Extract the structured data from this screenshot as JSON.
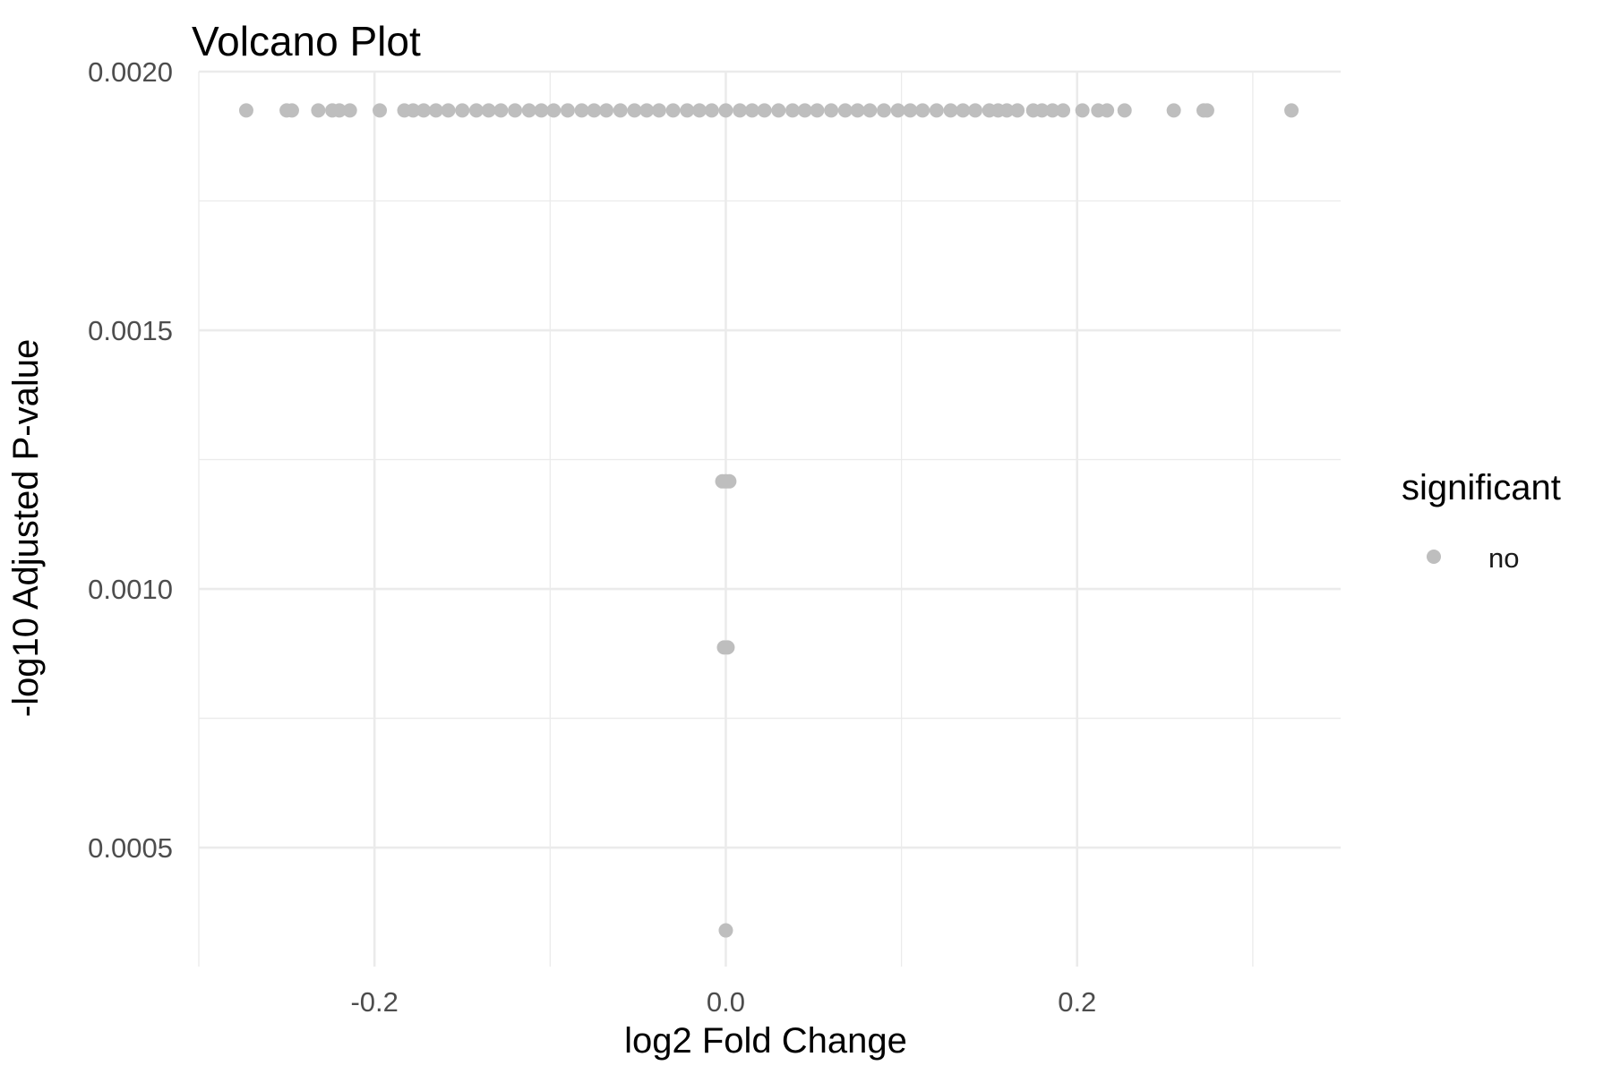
{
  "chart_data": {
    "type": "scatter",
    "title": "Volcano Plot",
    "xlabel": "log2 Fold Change",
    "ylabel": "-log10 Adjusted P-value",
    "xlim": [
      -0.3,
      0.35
    ],
    "ylim": [
      0.00027,
      0.002
    ],
    "x_ticks": [
      -0.2,
      0.0,
      0.2
    ],
    "x_tick_labels": [
      "-0.2",
      "0.0",
      "0.2"
    ],
    "y_ticks": [
      0.0005,
      0.001,
      0.0015,
      0.002
    ],
    "y_tick_labels": [
      "0.0005",
      "0.0010",
      "0.0015",
      "0.0020"
    ],
    "x_minor_ticks": [
      -0.3,
      -0.1,
      0.1,
      0.3
    ],
    "y_minor_ticks": [
      0.00075,
      0.00125,
      0.00175
    ],
    "grid": true,
    "legend": {
      "title": "significant",
      "position": "right",
      "entries": [
        {
          "label": "no",
          "color": "#bebebe"
        }
      ]
    },
    "series": [
      {
        "name": "no",
        "color": "#bebebe",
        "points": [
          [
            -0.273,
            0.001925
          ],
          [
            -0.25,
            0.001925
          ],
          [
            -0.247,
            0.001925
          ],
          [
            -0.232,
            0.001925
          ],
          [
            -0.224,
            0.001925
          ],
          [
            -0.22,
            0.001925
          ],
          [
            -0.214,
            0.001925
          ],
          [
            -0.197,
            0.001925
          ],
          [
            -0.183,
            0.001925
          ],
          [
            -0.178,
            0.001925
          ],
          [
            -0.172,
            0.001925
          ],
          [
            -0.165,
            0.001925
          ],
          [
            -0.158,
            0.001925
          ],
          [
            -0.15,
            0.001925
          ],
          [
            -0.142,
            0.001925
          ],
          [
            -0.135,
            0.001925
          ],
          [
            -0.128,
            0.001925
          ],
          [
            -0.12,
            0.001925
          ],
          [
            -0.112,
            0.001925
          ],
          [
            -0.105,
            0.001925
          ],
          [
            -0.098,
            0.001925
          ],
          [
            -0.09,
            0.001925
          ],
          [
            -0.082,
            0.001925
          ],
          [
            -0.075,
            0.001925
          ],
          [
            -0.068,
            0.001925
          ],
          [
            -0.06,
            0.001925
          ],
          [
            -0.052,
            0.001925
          ],
          [
            -0.045,
            0.001925
          ],
          [
            -0.038,
            0.001925
          ],
          [
            -0.03,
            0.001925
          ],
          [
            -0.022,
            0.001925
          ],
          [
            -0.015,
            0.001925
          ],
          [
            -0.008,
            0.001925
          ],
          [
            0.0,
            0.001925
          ],
          [
            0.008,
            0.001925
          ],
          [
            0.015,
            0.001925
          ],
          [
            0.022,
            0.001925
          ],
          [
            0.03,
            0.001925
          ],
          [
            0.038,
            0.001925
          ],
          [
            0.045,
            0.001925
          ],
          [
            0.052,
            0.001925
          ],
          [
            0.06,
            0.001925
          ],
          [
            0.068,
            0.001925
          ],
          [
            0.075,
            0.001925
          ],
          [
            0.082,
            0.001925
          ],
          [
            0.09,
            0.001925
          ],
          [
            0.098,
            0.001925
          ],
          [
            0.105,
            0.001925
          ],
          [
            0.112,
            0.001925
          ],
          [
            0.12,
            0.001925
          ],
          [
            0.128,
            0.001925
          ],
          [
            0.135,
            0.001925
          ],
          [
            0.142,
            0.001925
          ],
          [
            0.15,
            0.001925
          ],
          [
            0.155,
            0.001925
          ],
          [
            0.16,
            0.001925
          ],
          [
            0.166,
            0.001925
          ],
          [
            0.175,
            0.001925
          ],
          [
            0.18,
            0.001925
          ],
          [
            0.186,
            0.001925
          ],
          [
            0.192,
            0.001925
          ],
          [
            0.203,
            0.001925
          ],
          [
            0.212,
            0.001925
          ],
          [
            0.217,
            0.001925
          ],
          [
            0.227,
            0.001925
          ],
          [
            0.255,
            0.001925
          ],
          [
            0.272,
            0.001925
          ],
          [
            0.274,
            0.001925
          ],
          [
            0.322,
            0.001925
          ],
          [
            -0.002,
            0.001208
          ],
          [
            0.0,
            0.001208
          ],
          [
            0.002,
            0.001208
          ],
          [
            -0.001,
            0.000887
          ],
          [
            0.001,
            0.000887
          ],
          [
            0.0,
            0.00034
          ]
        ]
      }
    ]
  }
}
